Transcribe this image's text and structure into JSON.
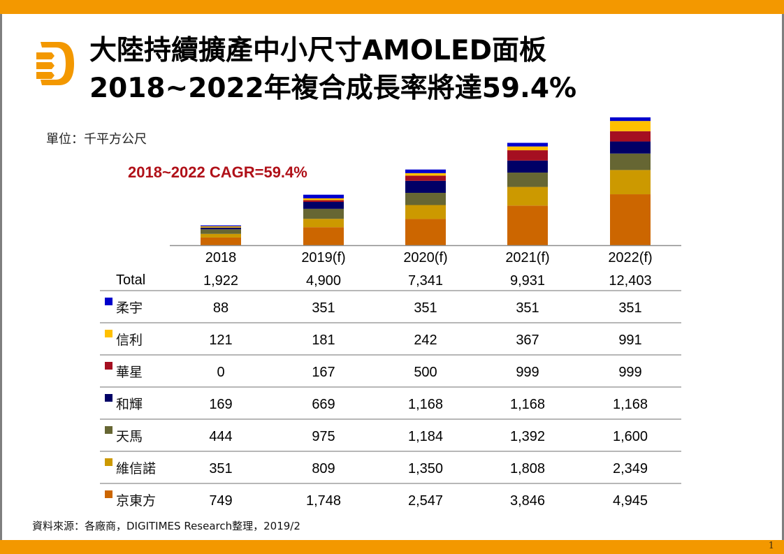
{
  "slide": {
    "title_line1": "大陸持續擴產中小尺寸AMOLED面板",
    "title_line2": "2018~2022年複合成長率將達59.4%",
    "unit_label": "單位：千平方公尺",
    "cagr_label": "2018~2022  CAGR=59.4%",
    "source": "資料來源：各廠商，DIGITIMES Research整理，2019/2",
    "page_number": "1",
    "logo_icon": "digitimes-d-logo-icon",
    "brand_color": "#F39800"
  },
  "chart_data": {
    "type": "bar",
    "stacked": true,
    "title": "大陸持續擴產中小尺寸AMOLED面板 2018~2022年複合成長率將達59.4%",
    "unit": "千平方公尺",
    "annotation": "2018~2022  CAGR=59.4%",
    "categories": [
      "2018",
      "2019(f)",
      "2020(f)",
      "2021(f)",
      "2022(f)"
    ],
    "totals_label": "Total",
    "totals": [
      "1,922",
      "4,900",
      "7,341",
      "9,931",
      "12,403"
    ],
    "total_values": [
      1922,
      4900,
      7341,
      9931,
      12403
    ],
    "ylim": [
      0,
      12403
    ],
    "grid": false,
    "legend": "table-left",
    "series_bottom_to_top": [
      {
        "name": "京東方",
        "color": "#CC6600",
        "values": [
          749,
          1748,
          2547,
          3846,
          4945
        ]
      },
      {
        "name": "維信諾",
        "color": "#CC9900",
        "values": [
          351,
          809,
          1350,
          1808,
          2349
        ]
      },
      {
        "name": "天馬",
        "color": "#666633",
        "values": [
          444,
          975,
          1184,
          1392,
          1600
        ]
      },
      {
        "name": "和輝",
        "color": "#000066",
        "values": [
          169,
          669,
          1168,
          1168,
          1168
        ]
      },
      {
        "name": "華星",
        "color": "#A50F21",
        "values": [
          0,
          167,
          500,
          999,
          999
        ]
      },
      {
        "name": "信利",
        "color": "#FFC000",
        "values": [
          121,
          181,
          242,
          367,
          991
        ]
      },
      {
        "name": "柔宇",
        "color": "#0000CC",
        "values": [
          88,
          351,
          351,
          351,
          351
        ]
      }
    ],
    "table_rows_top_to_bottom": [
      {
        "name": "柔宇",
        "color": "#0000CC",
        "cells": [
          "88",
          "351",
          "351",
          "351",
          "351"
        ]
      },
      {
        "name": "信利",
        "color": "#FFC000",
        "cells": [
          "121",
          "181",
          "242",
          "367",
          "991"
        ]
      },
      {
        "name": "華星",
        "color": "#A50F21",
        "cells": [
          "0",
          "167",
          "500",
          "999",
          "999"
        ]
      },
      {
        "name": "和輝",
        "color": "#000066",
        "cells": [
          "169",
          "669",
          "1,168",
          "1,168",
          "1,168"
        ]
      },
      {
        "name": "天馬",
        "color": "#666633",
        "cells": [
          "444",
          "975",
          "1,184",
          "1,392",
          "1,600"
        ]
      },
      {
        "name": "維信諾",
        "color": "#CC9900",
        "cells": [
          "351",
          "809",
          "1,350",
          "1,808",
          "2,349"
        ]
      },
      {
        "name": "京東方",
        "color": "#CC6600",
        "cells": [
          "749",
          "1,748",
          "2,547",
          "3,846",
          "4,945"
        ]
      }
    ]
  }
}
